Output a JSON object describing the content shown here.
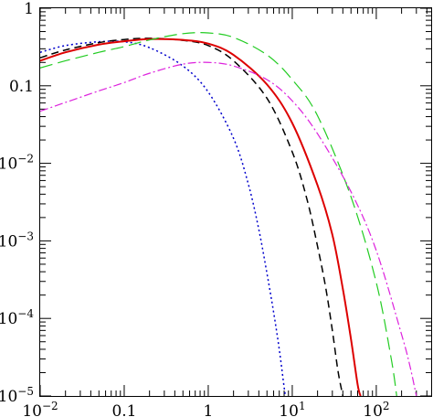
{
  "chart_data": {
    "type": "line",
    "title": "",
    "xlabel": "",
    "ylabel": "",
    "x_scale": "log",
    "y_scale": "log",
    "xlim": [
      0.01,
      450
    ],
    "ylim": [
      1e-05,
      1
    ],
    "grid": false,
    "legend": "none",
    "x_ticks": [
      {
        "value": 0.01,
        "base": "10",
        "exp": "−2"
      },
      {
        "value": 0.1,
        "text": "0.1"
      },
      {
        "value": 1,
        "text": "1"
      },
      {
        "value": 10,
        "base": "10",
        "exp": "1"
      },
      {
        "value": 100,
        "base": "10",
        "exp": "2"
      }
    ],
    "y_ticks": [
      {
        "value": 1,
        "text": "1"
      },
      {
        "value": 0.1,
        "text": "0.1"
      },
      {
        "value": 0.01,
        "base": "10",
        "exp": "−2"
      },
      {
        "value": 0.001,
        "base": "10",
        "exp": "−3"
      },
      {
        "value": 0.0001,
        "base": "10",
        "exp": "−4"
      },
      {
        "value": 1e-05,
        "base": "10",
        "exp": "−5"
      }
    ],
    "series": [
      {
        "color": "#0000cc",
        "dash": "2,3",
        "width": 1.5,
        "points": [
          [
            0.01,
            0.27
          ],
          [
            0.02,
            0.33
          ],
          [
            0.05,
            0.37
          ],
          [
            0.1,
            0.37
          ],
          [
            0.2,
            0.31
          ],
          [
            0.5,
            0.18
          ],
          [
            1,
            0.083
          ],
          [
            2,
            0.021
          ],
          [
            3,
            0.0054
          ],
          [
            4,
            0.0014
          ],
          [
            5,
            0.00038
          ],
          [
            6,
            0.00012
          ],
          [
            7,
            4e-05
          ],
          [
            8,
            1.3e-05
          ],
          [
            8.3,
            1e-05
          ]
        ]
      },
      {
        "color": "#000000",
        "dash": "8,5",
        "width": 1.5,
        "points": [
          [
            0.01,
            0.23
          ],
          [
            0.02,
            0.29
          ],
          [
            0.05,
            0.36
          ],
          [
            0.1,
            0.395
          ],
          [
            0.2,
            0.41
          ],
          [
            0.5,
            0.385
          ],
          [
            1,
            0.33
          ],
          [
            2,
            0.21
          ],
          [
            5,
            0.069
          ],
          [
            10,
            0.014
          ],
          [
            15,
            0.0034
          ],
          [
            20,
            0.00085
          ],
          [
            25,
            0.00025
          ],
          [
            30,
            7e-05
          ],
          [
            35,
            2.1e-05
          ],
          [
            40,
            1e-05
          ]
        ]
      },
      {
        "color": "#dd0000",
        "dash": "",
        "width": 2,
        "points": [
          [
            0.01,
            0.21
          ],
          [
            0.02,
            0.27
          ],
          [
            0.05,
            0.34
          ],
          [
            0.1,
            0.375
          ],
          [
            0.2,
            0.4
          ],
          [
            0.5,
            0.39
          ],
          [
            1,
            0.35
          ],
          [
            2,
            0.25
          ],
          [
            5,
            0.104
          ],
          [
            10,
            0.033
          ],
          [
            20,
            0.0052
          ],
          [
            30,
            0.0012
          ],
          [
            40,
            0.00024
          ],
          [
            50,
            5.4e-05
          ],
          [
            60,
            1.4e-05
          ],
          [
            65,
            1e-05
          ]
        ]
      },
      {
        "color": "#22cc22",
        "dash": "14,6",
        "width": 1.2,
        "points": [
          [
            0.01,
            0.17
          ],
          [
            0.02,
            0.21
          ],
          [
            0.05,
            0.27
          ],
          [
            0.1,
            0.32
          ],
          [
            0.2,
            0.39
          ],
          [
            0.5,
            0.47
          ],
          [
            1,
            0.48
          ],
          [
            2,
            0.42
          ],
          [
            5,
            0.25
          ],
          [
            10,
            0.12
          ],
          [
            20,
            0.041
          ],
          [
            50,
            0.0037
          ],
          [
            100,
            0.00029
          ],
          [
            150,
            3.1e-05
          ],
          [
            175,
            1e-05
          ]
        ]
      },
      {
        "color": "#dd22dd",
        "dash": "9,3,2,3",
        "width": 1.2,
        "points": [
          [
            0.01,
            0.047
          ],
          [
            0.02,
            0.061
          ],
          [
            0.05,
            0.086
          ],
          [
            0.1,
            0.11
          ],
          [
            0.2,
            0.145
          ],
          [
            0.5,
            0.19
          ],
          [
            1,
            0.2
          ],
          [
            2,
            0.18
          ],
          [
            5,
            0.12
          ],
          [
            10,
            0.064
          ],
          [
            20,
            0.024
          ],
          [
            50,
            0.0043
          ],
          [
            100,
            0.00075
          ],
          [
            200,
            6.2e-05
          ],
          [
            250,
            2.5e-05
          ],
          [
            300,
            1e-05
          ]
        ]
      }
    ]
  }
}
